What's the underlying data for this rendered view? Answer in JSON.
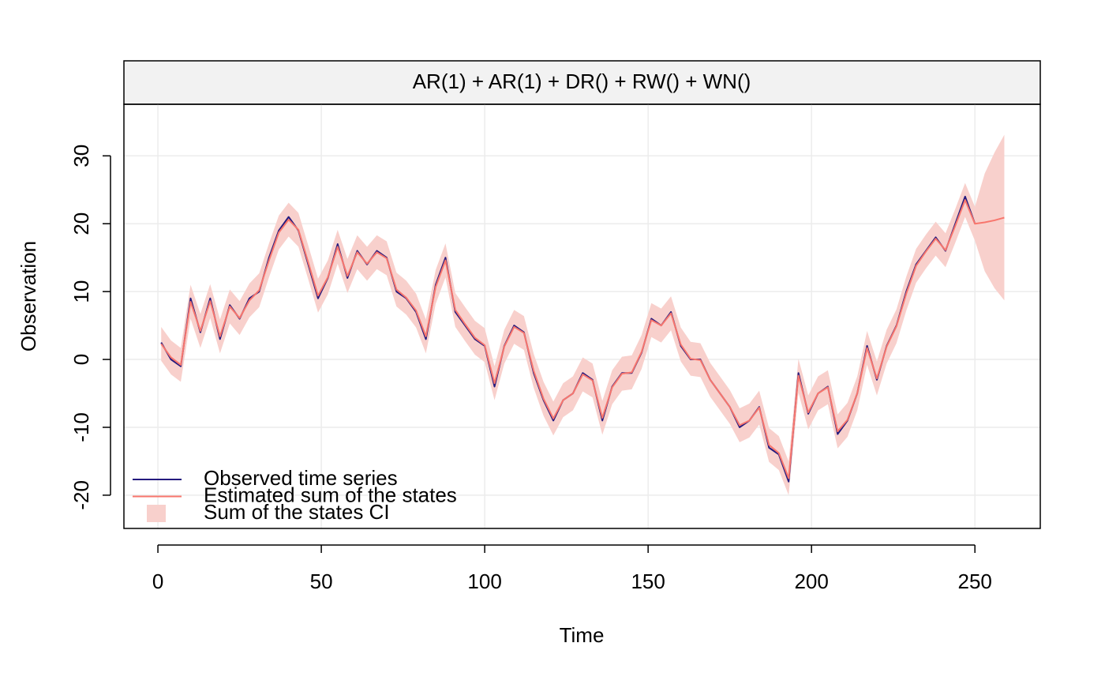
{
  "chart_data": {
    "type": "line",
    "title": "AR(1) + AR(1) + DR() + RW() + WN()",
    "x_label": "Time",
    "y_label": "Observation",
    "x": [
      1,
      4,
      7,
      10,
      13,
      16,
      19,
      22,
      25,
      28,
      31,
      34,
      37,
      40,
      43,
      46,
      49,
      52,
      55,
      58,
      61,
      64,
      67,
      70,
      73,
      76,
      79,
      82,
      85,
      88,
      91,
      94,
      97,
      100,
      103,
      106,
      109,
      112,
      115,
      118,
      121,
      124,
      127,
      130,
      133,
      136,
      139,
      142,
      145,
      148,
      151,
      154,
      157,
      160,
      163,
      166,
      169,
      172,
      175,
      178,
      181,
      184,
      187,
      190,
      193,
      196,
      199,
      202,
      205,
      208,
      211,
      214,
      217,
      220,
      223,
      226,
      229,
      232,
      235,
      238,
      241,
      244,
      247,
      250,
      253,
      256,
      259
    ],
    "series": [
      {
        "name": "Observed time series",
        "color": "#241a7e",
        "values": [
          2.5,
          0,
          -1,
          9,
          4,
          9,
          3,
          8,
          6,
          9,
          10,
          15,
          19,
          21,
          19,
          14,
          9,
          12,
          17,
          12,
          16,
          14,
          16,
          15,
          10,
          9,
          7,
          3,
          11,
          15,
          7,
          5,
          3,
          2,
          -4,
          2,
          5,
          4,
          -2,
          -6,
          -9,
          -6,
          -5,
          -2,
          -3,
          -9,
          -4,
          -2,
          -2,
          1,
          6,
          5,
          7,
          2,
          0,
          0,
          -3,
          -5,
          -7,
          -10,
          -9,
          -7,
          -13,
          -14,
          -18,
          -2,
          -8,
          -5,
          -4,
          -11,
          -9,
          -5,
          2,
          -3,
          2,
          5,
          10,
          14,
          16,
          18,
          16,
          20,
          24,
          20,
          null,
          null,
          null
        ]
      },
      {
        "name": "Estimated sum of the states",
        "color": "#f8766d",
        "values": [
          2.3,
          0.3,
          -0.8,
          8.5,
          4.2,
          8.6,
          3.4,
          7.8,
          6.1,
          8.7,
          10.2,
          14.6,
          18.7,
          20.6,
          19.1,
          14.3,
          9.4,
          12.1,
          16.6,
          12.3,
          15.8,
          14.1,
          15.8,
          14.9,
          10.3,
          9.1,
          7.2,
          3.4,
          10.7,
          14.6,
          7.3,
          5.2,
          3.2,
          2.1,
          -3.5,
          1.9,
          4.8,
          3.9,
          -1.7,
          -5.8,
          -8.7,
          -6,
          -5,
          -2.2,
          -3.1,
          -8.6,
          -4.1,
          -2.1,
          -1.9,
          1.1,
          5.8,
          5,
          6.8,
          2.2,
          0.1,
          -0.1,
          -3,
          -5,
          -7,
          -9.7,
          -9,
          -7.1,
          -12.6,
          -13.8,
          -17.5,
          -2.4,
          -7.8,
          -5,
          -4.1,
          -10.6,
          -8.9,
          -5,
          1.7,
          -2.8,
          1.9,
          4.9,
          9.7,
          13.8,
          15.9,
          17.8,
          16.1,
          19.7,
          23.5,
          20,
          20.2,
          20.5,
          20.9
        ]
      }
    ],
    "band": {
      "name": "Sum of the states CI",
      "color": "#f8d0cc",
      "lower": [
        -0.2,
        -2.2,
        -3.3,
        6,
        1.7,
        6.1,
        0.9,
        5.3,
        3.6,
        6.2,
        7.7,
        12.1,
        16.2,
        18.1,
        16.6,
        11.8,
        6.9,
        9.6,
        14.1,
        9.8,
        13.3,
        11.6,
        13.3,
        12.4,
        7.8,
        6.6,
        4.7,
        0.9,
        8.2,
        12.1,
        4.8,
        2.7,
        0.7,
        -0.4,
        -6,
        -0.6,
        2.3,
        1.4,
        -4.2,
        -8.3,
        -11.2,
        -8.5,
        -7.5,
        -4.7,
        -5.6,
        -11.1,
        -6.6,
        -4.6,
        -4.4,
        -1.4,
        3.3,
        2.5,
        4.3,
        -0.3,
        -2.4,
        -2.6,
        -5.5,
        -7.5,
        -9.5,
        -12.2,
        -11.5,
        -9.6,
        -15.1,
        -16.3,
        -20,
        -4.9,
        -10.3,
        -7.5,
        -6.6,
        -13.1,
        -11.4,
        -7.5,
        -0.8,
        -5.3,
        -0.6,
        2.4,
        7.2,
        11.3,
        13.4,
        15.3,
        13.6,
        17.2,
        21,
        17.5,
        13,
        10.5,
        8.7
      ],
      "upper": [
        4.8,
        2.8,
        1.7,
        11,
        6.7,
        11.1,
        5.9,
        10.3,
        8.6,
        11.2,
        12.7,
        17.1,
        21.2,
        23.1,
        21.6,
        16.8,
        11.9,
        14.6,
        19.1,
        14.8,
        18.3,
        16.6,
        18.3,
        17.4,
        12.8,
        11.6,
        9.7,
        5.9,
        13.2,
        17.1,
        9.8,
        7.7,
        5.7,
        4.6,
        -1,
        4.4,
        7.3,
        6.4,
        0.8,
        -3.3,
        -6.2,
        -3.5,
        -2.5,
        0.3,
        -0.6,
        -6.1,
        -1.6,
        0.4,
        0.6,
        3.6,
        8.3,
        7.5,
        9.3,
        4.7,
        2.6,
        2.4,
        -0.5,
        -2.5,
        -4.5,
        -7.2,
        -6.5,
        -4.6,
        -10.1,
        -11.3,
        -15,
        0.1,
        -5.3,
        -2.5,
        -1.6,
        -8.1,
        -6.4,
        -2.5,
        4.2,
        -0.3,
        4.4,
        7.4,
        12.2,
        16.3,
        18.4,
        20.3,
        18.6,
        22.2,
        26,
        22.5,
        27.4,
        30.5,
        33.1
      ]
    },
    "xlim": [
      -10.4,
      270
    ],
    "ylim": [
      -24.9,
      37.6
    ],
    "xticks": [
      0,
      50,
      100,
      150,
      200,
      250
    ],
    "yticks": [
      -20,
      -10,
      0,
      10,
      20,
      30
    ],
    "grid": true,
    "legend": "bottom-left"
  }
}
